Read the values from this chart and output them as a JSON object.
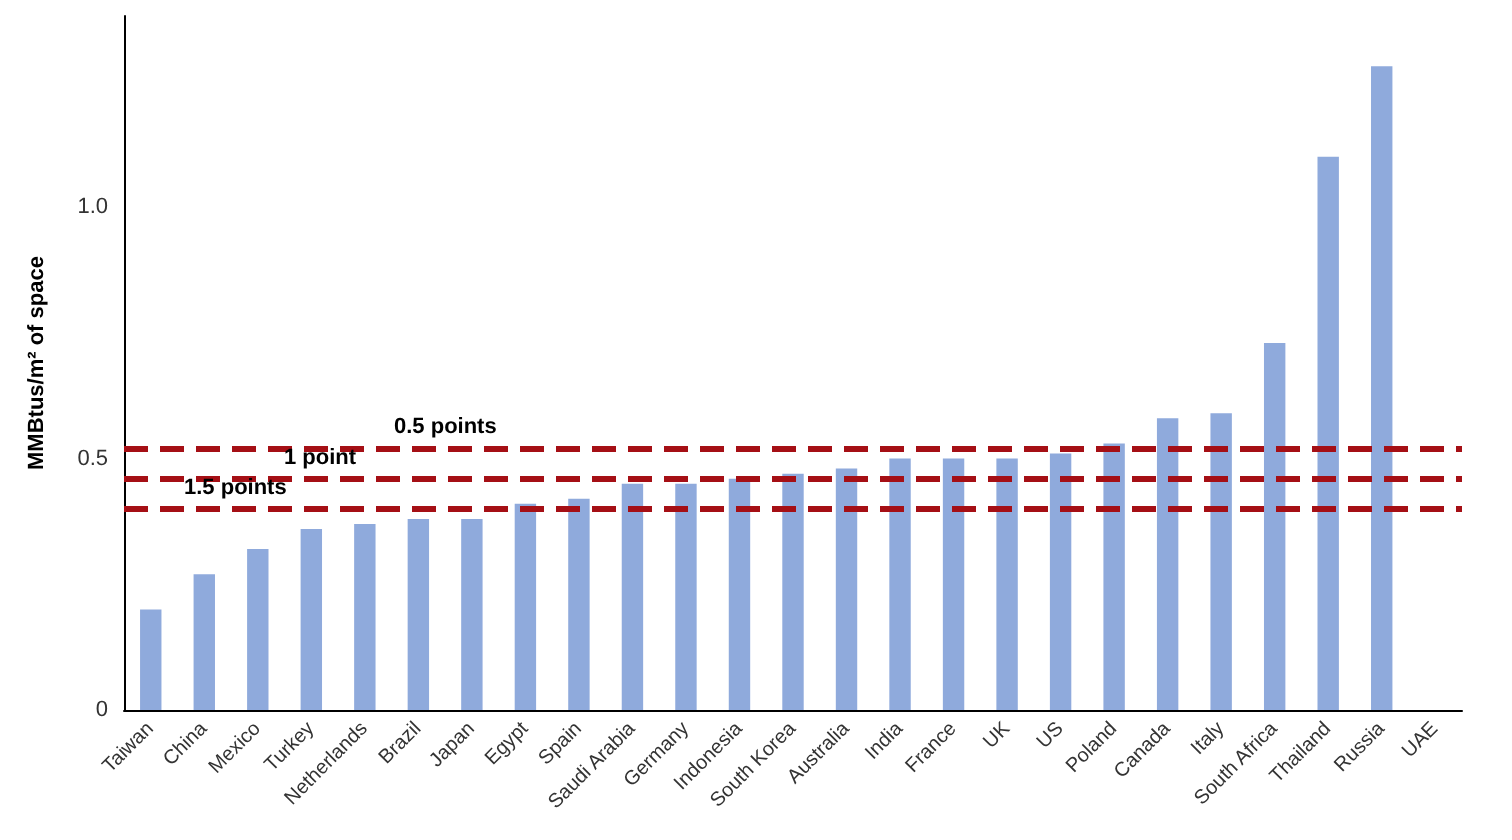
{
  "chart_data": {
    "type": "bar",
    "ylabel": "MMBtus/m² of space",
    "categories": [
      "Taiwan",
      "China",
      "Mexico",
      "Turkey",
      "Netherlands",
      "Brazil",
      "Japan",
      "Egypt",
      "Spain",
      "Saudi Arabia",
      "Germany",
      "Indonesia",
      "South Korea",
      "Australia",
      "India",
      "France",
      "UK",
      "US",
      "Poland",
      "Canada",
      "Italy",
      "South Africa",
      "Thailand",
      "Russia",
      "UAE"
    ],
    "values": [
      0.2,
      0.27,
      0.32,
      0.36,
      0.37,
      0.38,
      0.38,
      0.41,
      0.42,
      0.45,
      0.45,
      0.46,
      0.47,
      0.48,
      0.5,
      0.5,
      0.5,
      0.51,
      0.53,
      0.58,
      0.59,
      0.73,
      1.1,
      1.28,
      null
    ],
    "color": "#8faadc",
    "ylim": [
      0,
      1.38
    ],
    "yticks": [
      0,
      0.5,
      {
        "value": 1,
        "label": "1.0"
      }
    ],
    "grid": false,
    "ref_lines": [
      {
        "axis": "y",
        "value": 0.52,
        "label": "0.5 points",
        "color": "#a50f15",
        "line_style": "dashed"
      },
      {
        "axis": "y",
        "value": 0.46,
        "label": "1 point",
        "color": "#a50f15",
        "line_style": "dashed"
      },
      {
        "axis": "y",
        "value": 0.4,
        "label": "1.5 points",
        "color": "#a50f15",
        "line_style": "dashed"
      }
    ]
  }
}
